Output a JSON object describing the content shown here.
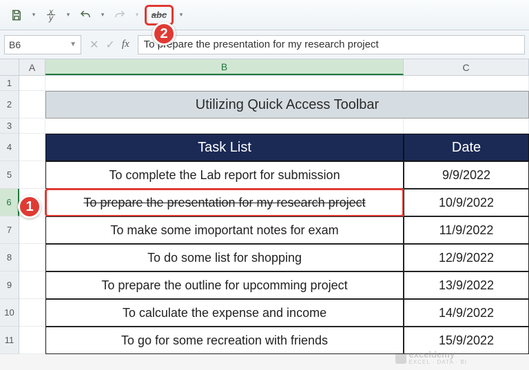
{
  "qat": {
    "strike_label": "abc"
  },
  "formula_bar": {
    "name_box": "B6",
    "fx": "fx",
    "value": "To prepare the presentation for my research project"
  },
  "columns": {
    "A": "A",
    "B": "B",
    "C": "C"
  },
  "rownums": [
    "1",
    "2",
    "3",
    "4",
    "5",
    "6",
    "7",
    "8",
    "9",
    "10",
    "11"
  ],
  "title": "Utilizing Quick Access Toolbar",
  "headers": {
    "task": "Task List",
    "date": "Date"
  },
  "tasks": [
    {
      "text": "To complete the Lab report for submission",
      "date": "9/9/2022",
      "strike": false,
      "selected": false
    },
    {
      "text": "To prepare the presentation for my research project",
      "date": "10/9/2022",
      "strike": true,
      "selected": true
    },
    {
      "text": "To make some imoportant notes for exam",
      "date": "11/9/2022",
      "strike": false,
      "selected": false
    },
    {
      "text": "To do some list for shopping",
      "date": "12/9/2022",
      "strike": false,
      "selected": false
    },
    {
      "text": "To prepare the outline for upcomming project",
      "date": "13/9/2022",
      "strike": false,
      "selected": false
    },
    {
      "text": "To calculate the expense and income",
      "date": "14/9/2022",
      "strike": false,
      "selected": false
    },
    {
      "text": "To go for some recreation with friends",
      "date": "15/9/2022",
      "strike": false,
      "selected": false
    }
  ],
  "callouts": {
    "one": "1",
    "two": "2"
  },
  "watermark": {
    "brand": "exceldemy",
    "tag": "EXCEL · DATA · BI"
  },
  "colors": {
    "header_bg": "#1a2a55",
    "title_bg": "#d6dde2",
    "accent_red": "#e03a34",
    "sel_green": "#1f7a3a"
  }
}
